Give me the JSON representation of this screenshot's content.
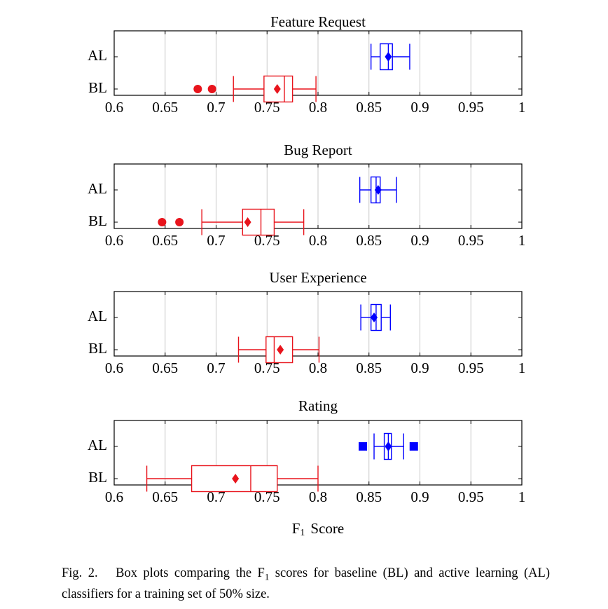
{
  "chart_data": {
    "type": "boxplot",
    "xlim": [
      0.6,
      1
    ],
    "xticks": [
      "0.6",
      "0.65",
      "0.7",
      "0.75",
      "0.8",
      "0.85",
      "0.9",
      "0.95",
      "1"
    ],
    "xticks_values": [
      0.6,
      0.65,
      0.7,
      0.75,
      0.8,
      0.85,
      0.9,
      0.95,
      1.0
    ],
    "xlabel": {
      "main": "F",
      "sub": "1",
      "rest": "Score"
    },
    "grid": "vertical",
    "colors": {
      "AL": "#0000ff",
      "BL": "#e8141c"
    },
    "panels": [
      {
        "title": "Feature Request",
        "series": [
          {
            "name": "AL",
            "whisker_low": 0.852,
            "q1": 0.861,
            "median": 0.869,
            "q3": 0.873,
            "whisker_high": 0.89,
            "mean": 0.869,
            "outliers": [],
            "outlier_marker": "square"
          },
          {
            "name": "BL",
            "whisker_low": 0.717,
            "q1": 0.747,
            "median": 0.767,
            "q3": 0.775,
            "whisker_high": 0.798,
            "mean": 0.76,
            "outliers": [
              0.682,
              0.696
            ],
            "outlier_marker": "circle"
          }
        ]
      },
      {
        "title": "Bug Report",
        "series": [
          {
            "name": "AL",
            "whisker_low": 0.841,
            "q1": 0.852,
            "median": 0.857,
            "q3": 0.861,
            "whisker_high": 0.877,
            "mean": 0.859,
            "outliers": [],
            "outlier_marker": "square"
          },
          {
            "name": "BL",
            "whisker_low": 0.686,
            "q1": 0.726,
            "median": 0.744,
            "q3": 0.757,
            "whisker_high": 0.786,
            "mean": 0.731,
            "outliers": [
              0.647,
              0.664
            ],
            "outlier_marker": "circle"
          }
        ]
      },
      {
        "title": "User Experience",
        "series": [
          {
            "name": "AL",
            "whisker_low": 0.842,
            "q1": 0.852,
            "median": 0.857,
            "q3": 0.862,
            "whisker_high": 0.871,
            "mean": 0.855,
            "outliers": [],
            "outlier_marker": "square"
          },
          {
            "name": "BL",
            "whisker_low": 0.722,
            "q1": 0.749,
            "median": 0.757,
            "q3": 0.775,
            "whisker_high": 0.801,
            "mean": 0.763,
            "outliers": [],
            "outlier_marker": "circle"
          }
        ]
      },
      {
        "title": "Rating",
        "series": [
          {
            "name": "AL",
            "whisker_low": 0.855,
            "q1": 0.865,
            "median": 0.869,
            "q3": 0.872,
            "whisker_high": 0.884,
            "mean": 0.869,
            "outliers": [
              0.844,
              0.894
            ],
            "outlier_marker": "square"
          },
          {
            "name": "BL",
            "whisker_low": 0.632,
            "q1": 0.676,
            "median": 0.734,
            "q3": 0.76,
            "whisker_high": 0.8,
            "mean": 0.719,
            "outliers": [],
            "outlier_marker": "circle"
          }
        ]
      }
    ]
  },
  "caption": {
    "fig_label": "Fig. 2.",
    "text_before_sub": "Box plots comparing the F",
    "sub": "1",
    "text_after_sub": " scores for baseline (BL) and active learning (AL) classifiers for a training set of 50% size."
  }
}
